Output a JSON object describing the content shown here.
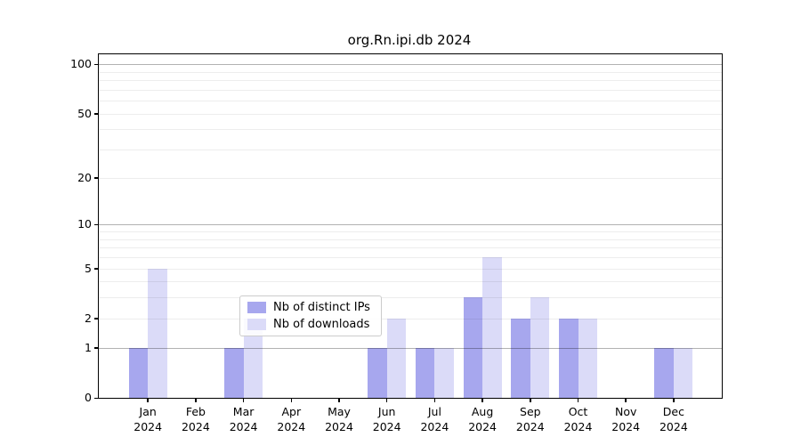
{
  "title": "org.Rn.ipi.db 2024",
  "chart_data": {
    "type": "bar",
    "title": "org.Rn.ipi.db 2024",
    "categories": [
      "Jan",
      "Feb",
      "Mar",
      "Apr",
      "May",
      "Jun",
      "Jul",
      "Aug",
      "Sep",
      "Oct",
      "Nov",
      "Dec"
    ],
    "x_tick_second_line": "2024",
    "series": [
      {
        "name": "Nb of distinct IPs",
        "color": "#a7a7ee",
        "values": [
          1,
          0,
          1,
          0,
          0,
          1,
          1,
          3,
          2,
          2,
          0,
          1
        ]
      },
      {
        "name": "Nb of downloads",
        "color": "#dbdbf8",
        "values": [
          5,
          0,
          2,
          0,
          0,
          2,
          1,
          6,
          3,
          2,
          0,
          1
        ]
      }
    ],
    "xlabel": "",
    "ylabel": "",
    "y_scale": "log1p",
    "ylim": [
      0,
      115
    ],
    "y_labeled_ticks": [
      0,
      1,
      2,
      5,
      10,
      20,
      50,
      100
    ],
    "y_major_gridlines": [
      1,
      10,
      100
    ],
    "y_minor_gridlines": [
      2,
      3,
      4,
      5,
      6,
      7,
      8,
      9,
      20,
      30,
      40,
      50,
      60,
      70,
      80,
      90
    ],
    "grid": "on",
    "legend_position": "inside lower-center"
  },
  "colors": {
    "background": "#ffffff",
    "axis_frame": "#000000",
    "text": "#000000",
    "series_distinct_ips": "#a7a7ee",
    "series_downloads": "#dbdbf8",
    "grid_major": "#b3b3b3",
    "grid_minor": "#ededed",
    "legend_border": "#cccccc"
  }
}
